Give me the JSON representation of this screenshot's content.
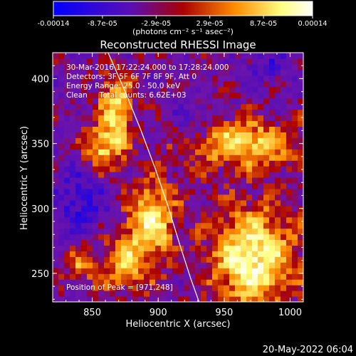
{
  "colorbar": {
    "tick_labels": [
      "-0.00014",
      "-8.7e-05",
      "-2.9e-05",
      "2.9e-05",
      "8.7e-05",
      "0.00014"
    ],
    "tick_values": [
      -0.00014,
      -8.7e-05,
      -2.9e-05,
      2.9e-05,
      8.7e-05,
      0.00014
    ],
    "min": -0.00014,
    "max": 0.00014,
    "unit_label": "(photons cm⁻² s⁻¹ asec⁻²)",
    "colors": [
      "#0000ff",
      "#5a0fb4",
      "#aa0000",
      "#ff8c00",
      "#ffff80",
      "#ffffff"
    ]
  },
  "chart_data": {
    "type": "heatmap",
    "title": "Reconstructed RHESSI Image",
    "xlabel": "Heliocentric X (arcsec)",
    "ylabel": "Heliocentric Y (arcsec)",
    "xlim": [
      820,
      1010
    ],
    "ylim": [
      228,
      420
    ],
    "x_ticks": [
      850,
      900,
      950,
      1000
    ],
    "y_ticks": [
      250,
      300,
      350,
      400
    ],
    "x_tick_labels": [
      "850",
      "900",
      "950",
      "1000"
    ],
    "y_tick_labels": [
      "250",
      "300",
      "350",
      "400"
    ],
    "info_lines": [
      "30-Mar-2016 17:22:24.000 to 17:28:24.000",
      "Detectors: 3F 5F 6F 7F 8F 9F, Att 0",
      "Energy Range: 25.0 - 50.0 keV",
      "Clean     Total counts: 6.62E+03"
    ],
    "peak_label": "Position of Peak = [971,248]",
    "peak_position": [
      971,
      248
    ],
    "solar_limb": [
      [
        862,
        420
      ],
      [
        875,
        390
      ],
      [
        887,
        360
      ],
      [
        898,
        330
      ],
      [
        908,
        300
      ],
      [
        917,
        270
      ],
      [
        925,
        245
      ],
      [
        931,
        228
      ]
    ],
    "emission_sources": [
      {
        "x": 868,
        "y": 375,
        "sx": 9,
        "sy": 22,
        "amp": 0.00011
      },
      {
        "x": 855,
        "y": 345,
        "sx": 10,
        "sy": 12,
        "amp": 9e-05
      },
      {
        "x": 895,
        "y": 290,
        "sx": 13,
        "sy": 22,
        "amp": 0.00012
      },
      {
        "x": 873,
        "y": 258,
        "sx": 14,
        "sy": 16,
        "amp": 8e-05
      },
      {
        "x": 965,
        "y": 350,
        "sx": 30,
        "sy": 13,
        "amp": 0.00011
      },
      {
        "x": 972,
        "y": 262,
        "sx": 22,
        "sy": 28,
        "amp": 0.00014
      },
      {
        "x": 840,
        "y": 258,
        "sx": 8,
        "sy": 10,
        "amp": 7e-05
      }
    ],
    "negative_regions": [
      {
        "x": 840,
        "y": 305,
        "sx": 16,
        "sy": 20,
        "amp": -7e-05
      },
      {
        "x": 928,
        "y": 370,
        "sx": 12,
        "sy": 12,
        "amp": -4e-05
      },
      {
        "x": 985,
        "y": 410,
        "sx": 14,
        "sy": 8,
        "amp": -5e-05
      }
    ],
    "background_level": -1.8e-05
  },
  "footer": {
    "date_stamp": "20-May-2022 06:04"
  }
}
